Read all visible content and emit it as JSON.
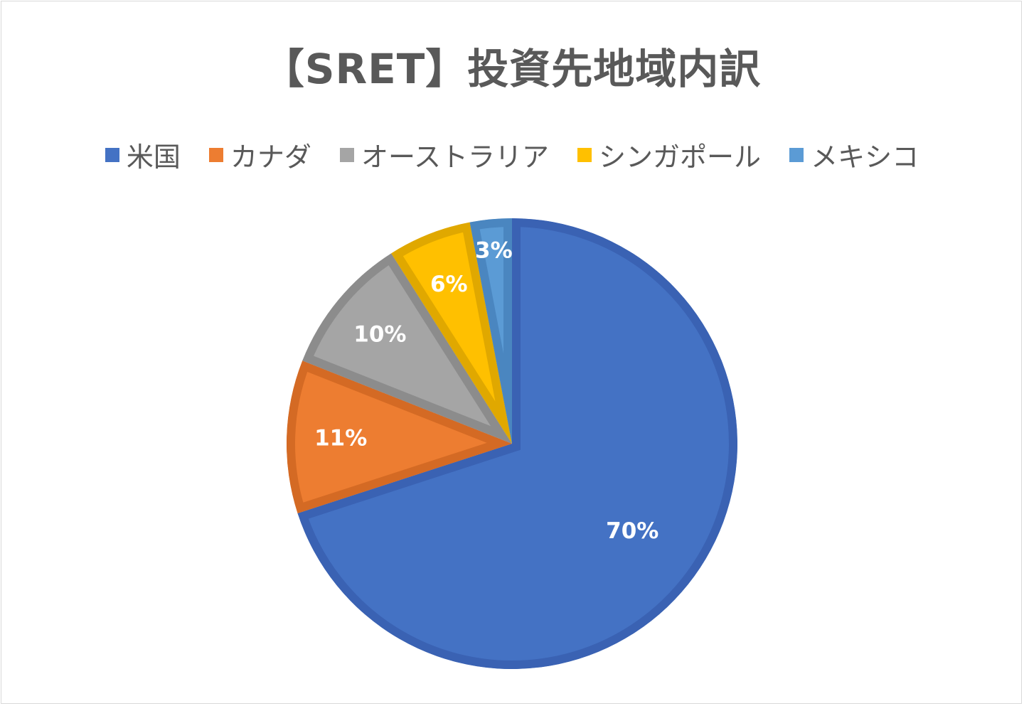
{
  "chart_data": {
    "type": "pie",
    "title": "【SRET】投資先地域内訳",
    "legend_position": "top",
    "slices": [
      {
        "name": "米国",
        "value": 70,
        "label": "70%",
        "color": "#4472C4",
        "edge": "#3A62B3"
      },
      {
        "name": "カナダ",
        "value": 11,
        "label": "11%",
        "color": "#ED7D31",
        "edge": "#D46A24"
      },
      {
        "name": "オーストラリア",
        "value": 10,
        "label": "10%",
        "color": "#A5A5A5",
        "edge": "#8C8C8C"
      },
      {
        "name": "シンガポール",
        "value": 6,
        "label": "6%",
        "color": "#FFC000",
        "edge": "#E0A800"
      },
      {
        "name": "メキシコ",
        "value": 3,
        "label": "3%",
        "color": "#5B9BD5",
        "edge": "#4A86C0"
      }
    ]
  }
}
